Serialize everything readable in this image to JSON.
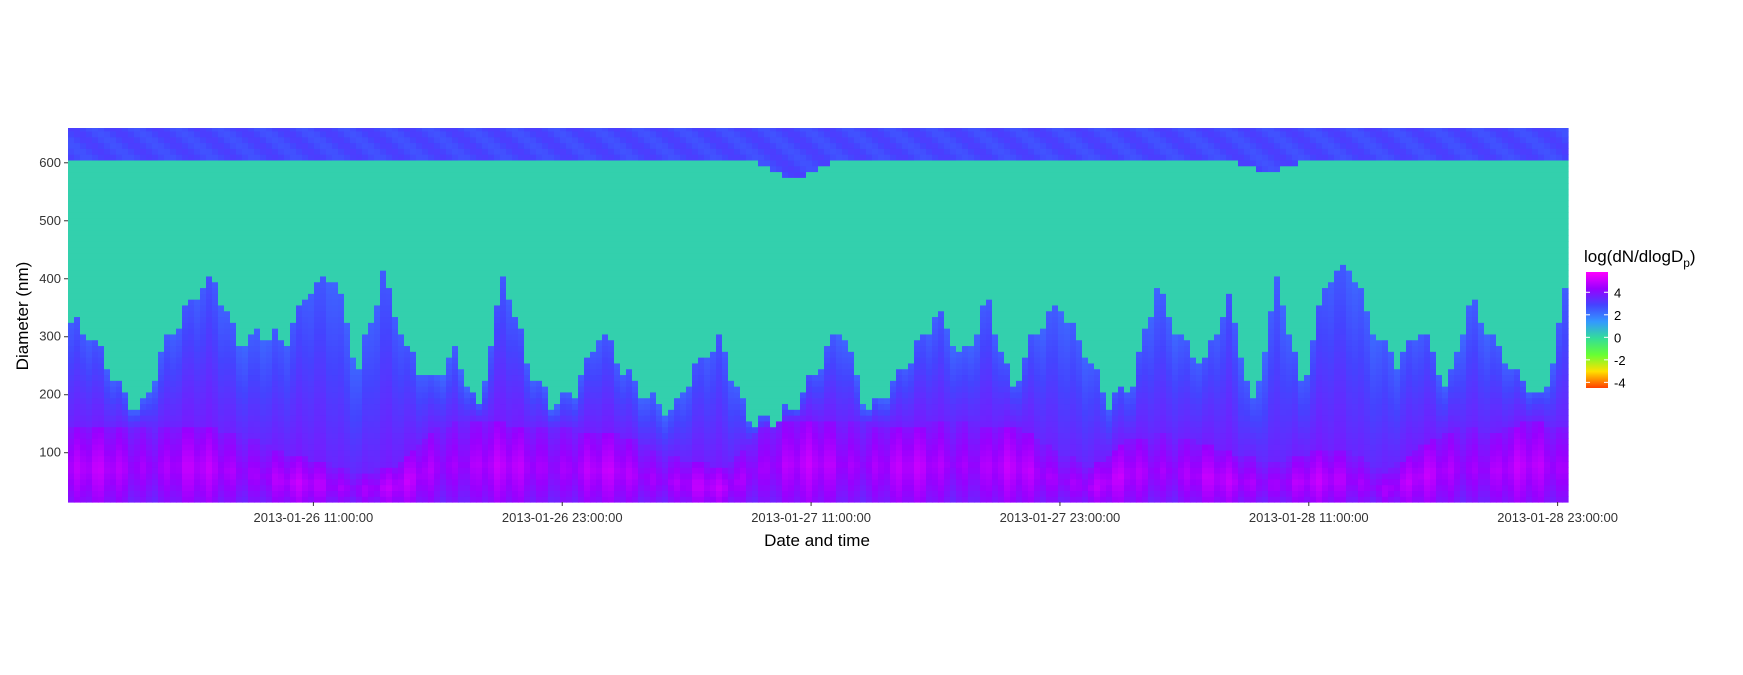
{
  "chart_data": {
    "type": "heatmap",
    "title": "",
    "xlabel": "Date and time",
    "ylabel": "Diameter (nm)",
    "x_range": [
      "2013-01-25 23:10:00",
      "2013-01-28 23:30:00"
    ],
    "ylim": [
      15,
      660
    ],
    "x_ticks": [
      "2013-01-26 11:00:00",
      "2013-01-26 23:00:00",
      "2013-01-27 11:00:00",
      "2013-01-27 23:00:00",
      "2013-01-28 11:00:00",
      "2013-01-28 23:00:00"
    ],
    "y_ticks": [
      100,
      200,
      300,
      400,
      500,
      600
    ],
    "grid": false,
    "colorbar": {
      "title": "log(dN/dlogD",
      "title_subscript": "p",
      "title_close": ")",
      "ticks": [
        4,
        2,
        0,
        -2,
        -4
      ],
      "range": [
        -4.5,
        5.8
      ],
      "colors": [
        "#ff4000",
        "#ffe000",
        "#66ff33",
        "#33dd99",
        "#3399ff",
        "#4444ff",
        "#9900ff",
        "#ff00ff"
      ],
      "position": "right"
    },
    "bands": {
      "upper_band_value": 2.8,
      "green_plateau_value": 0.2,
      "upper_edge_nm": [
        605,
        602,
        600,
        604,
        598,
        602,
        600,
        603,
        598,
        600,
        605,
        601,
        600,
        603,
        598,
        602,
        600,
        565,
        603,
        600,
        601,
        598,
        602,
        600,
        600,
        604,
        598,
        602,
        580,
        600,
        601,
        600,
        603,
        598,
        600,
        602
      ],
      "green_lower_edge_nm": [
        330,
        280,
        210,
        175,
        290,
        340,
        390,
        300,
        310,
        280,
        370,
        410,
        250,
        400,
        260,
        220,
        280,
        170,
        390,
        250,
        190,
        210,
        290,
        230,
        200,
        175,
        240,
        280,
        170,
        160,
        165,
        230,
        320,
        180,
        200,
        260,
        340,
        270,
        360,
        190,
        300,
        370,
        280,
        170,
        210,
        395,
        300,
        240,
        350,
        180,
        410,
        200,
        380,
        420,
        320,
        250,
        300,
        200,
        380,
        280,
        210,
        180,
        410
      ],
      "low_mode_top_nm": [
        140,
        135,
        140,
        142,
        138,
        120,
        90,
        80,
        60,
        75,
        140,
        150,
        145,
        140,
        135,
        130,
        100,
        80,
        70,
        140,
        155,
        150,
        145,
        140,
        150,
        145,
        140,
        100,
        70,
        120,
        130,
        110,
        90,
        80,
        95,
        100,
        60,
        110,
        140,
        130,
        150,
        135
      ],
      "low_mode_peak_value": 4.6
    }
  }
}
